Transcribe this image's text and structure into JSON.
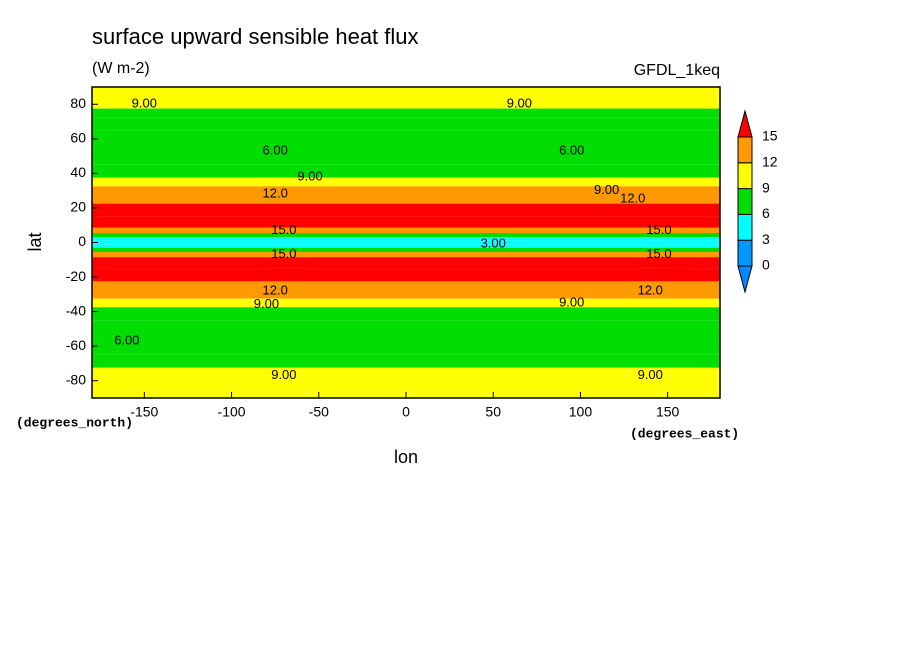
{
  "chart_data": {
    "type": "contour",
    "title": "surface upward sensible heat flux",
    "subtitle": "(W m-2)",
    "annotation": "GFDL_1keq",
    "x_label": "lon",
    "y_label": "lat",
    "x_units": "(degrees_east)",
    "y_units": "(degrees_north)",
    "xlim": [
      -180,
      180
    ],
    "ylim": [
      -90,
      90
    ],
    "xticks": [
      -150,
      -100,
      -50,
      0,
      50,
      100,
      150
    ],
    "yticks": [
      -80,
      -60,
      -40,
      -20,
      0,
      20,
      40,
      60,
      80
    ],
    "levels": [
      0,
      3,
      6,
      9,
      12,
      15
    ],
    "colors": [
      "#0088ff",
      "#0099ff",
      "#00ffff",
      "#00dd00",
      "#ffff00",
      "#ff9900",
      "#ff0000"
    ],
    "lat": [
      90,
      80,
      75,
      70,
      60,
      50,
      40,
      35,
      30,
      25,
      20,
      10,
      7,
      4,
      2,
      0,
      -2,
      -4,
      -7,
      -10,
      -20,
      -25,
      -30,
      -35,
      -40,
      -50,
      -60,
      -70,
      -75,
      -80,
      -90
    ],
    "values": [
      10,
      10,
      8,
      7,
      7,
      7,
      8,
      10,
      12.5,
      14,
      16,
      16,
      13,
      7,
      5,
      4,
      5,
      7,
      13,
      16,
      16,
      14,
      12.5,
      10,
      8,
      7,
      7,
      8,
      10,
      10,
      10
    ],
    "contour_labels": [
      {
        "value": 9,
        "label": "9.00",
        "lon": -150,
        "lat": 80
      },
      {
        "value": 9,
        "label": "9.00",
        "lon": 65,
        "lat": 80
      },
      {
        "value": 6,
        "label": "6.00",
        "lon": -75,
        "lat": 53
      },
      {
        "value": 6,
        "label": "6.00",
        "lon": 95,
        "lat": 53
      },
      {
        "value": 9,
        "label": "9.00",
        "lon": -55,
        "lat": 38
      },
      {
        "value": 9,
        "label": "9.00",
        "lon": 115,
        "lat": 30
      },
      {
        "value": 12,
        "label": "12.0",
        "lon": -75,
        "lat": 28
      },
      {
        "value": 12,
        "label": "12.0",
        "lon": 130,
        "lat": 25
      },
      {
        "value": 15,
        "label": "15.0",
        "lon": -70,
        "lat": 7
      },
      {
        "value": 15,
        "label": "15.0",
        "lon": 145,
        "lat": 7
      },
      {
        "value": 3,
        "label": "3.00",
        "lon": 50,
        "lat": -1
      },
      {
        "value": 15,
        "label": "15.0",
        "lon": -70,
        "lat": -7
      },
      {
        "value": 15,
        "label": "15.0",
        "lon": 145,
        "lat": -7
      },
      {
        "value": 12,
        "label": "12.0",
        "lon": -75,
        "lat": -28
      },
      {
        "value": 12,
        "label": "12.0",
        "lon": 140,
        "lat": -28
      },
      {
        "value": 9,
        "label": "9.00",
        "lon": -80,
        "lat": -36
      },
      {
        "value": 9,
        "label": "9.00",
        "lon": 95,
        "lat": -35
      },
      {
        "value": 6,
        "label": "6.00",
        "lon": -160,
        "lat": -57
      },
      {
        "value": 9,
        "label": "9.00",
        "lon": -70,
        "lat": -77
      },
      {
        "value": 9,
        "label": "9.00",
        "lon": 140,
        "lat": -77
      }
    ]
  }
}
